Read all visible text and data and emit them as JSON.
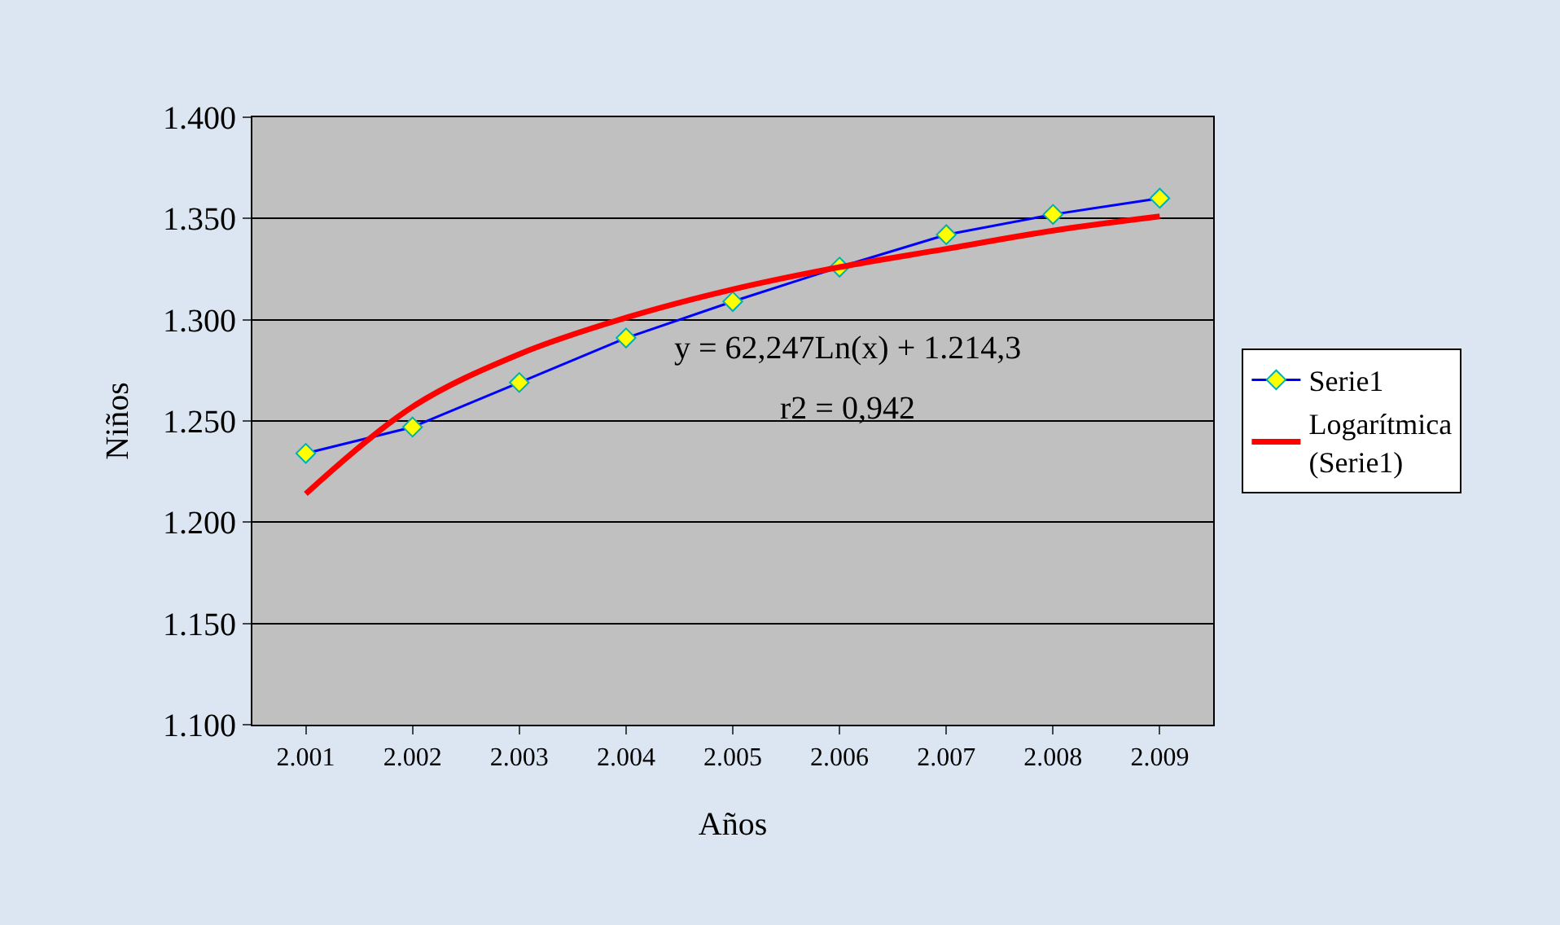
{
  "chart_data": {
    "type": "line",
    "xlabel": "Años",
    "ylabel": "Niños",
    "categories": [
      "2.001",
      "2.002",
      "2.003",
      "2.004",
      "2.005",
      "2.006",
      "2.007",
      "2.008",
      "2.009"
    ],
    "series": [
      {
        "name": "Serie1",
        "color": "#0000ff",
        "marker": "diamond",
        "values": [
          1234,
          1247,
          1269,
          1291,
          1309,
          1326,
          1342,
          1352,
          1360
        ]
      },
      {
        "name": "Logarítmica (Serie1)",
        "color": "#ff0000",
        "marker": "none",
        "values": [
          1214,
          1257,
          1283,
          1301,
          1315,
          1326,
          1335,
          1344,
          1351
        ]
      }
    ],
    "ylim": [
      1100,
      1400
    ],
    "yticks": [
      {
        "value": 1100,
        "label": "1.100"
      },
      {
        "value": 1150,
        "label": "1.150"
      },
      {
        "value": 1200,
        "label": "1.200"
      },
      {
        "value": 1250,
        "label": "1.250"
      },
      {
        "value": 1300,
        "label": "1.300"
      },
      {
        "value": 1350,
        "label": "1.350"
      },
      {
        "value": 1400,
        "label": "1.400"
      }
    ],
    "grid": "y",
    "legend": "right",
    "annotations": [
      "y = 62,247Ln(x) + 1.214,3",
      "r2 = 0,942"
    ]
  }
}
